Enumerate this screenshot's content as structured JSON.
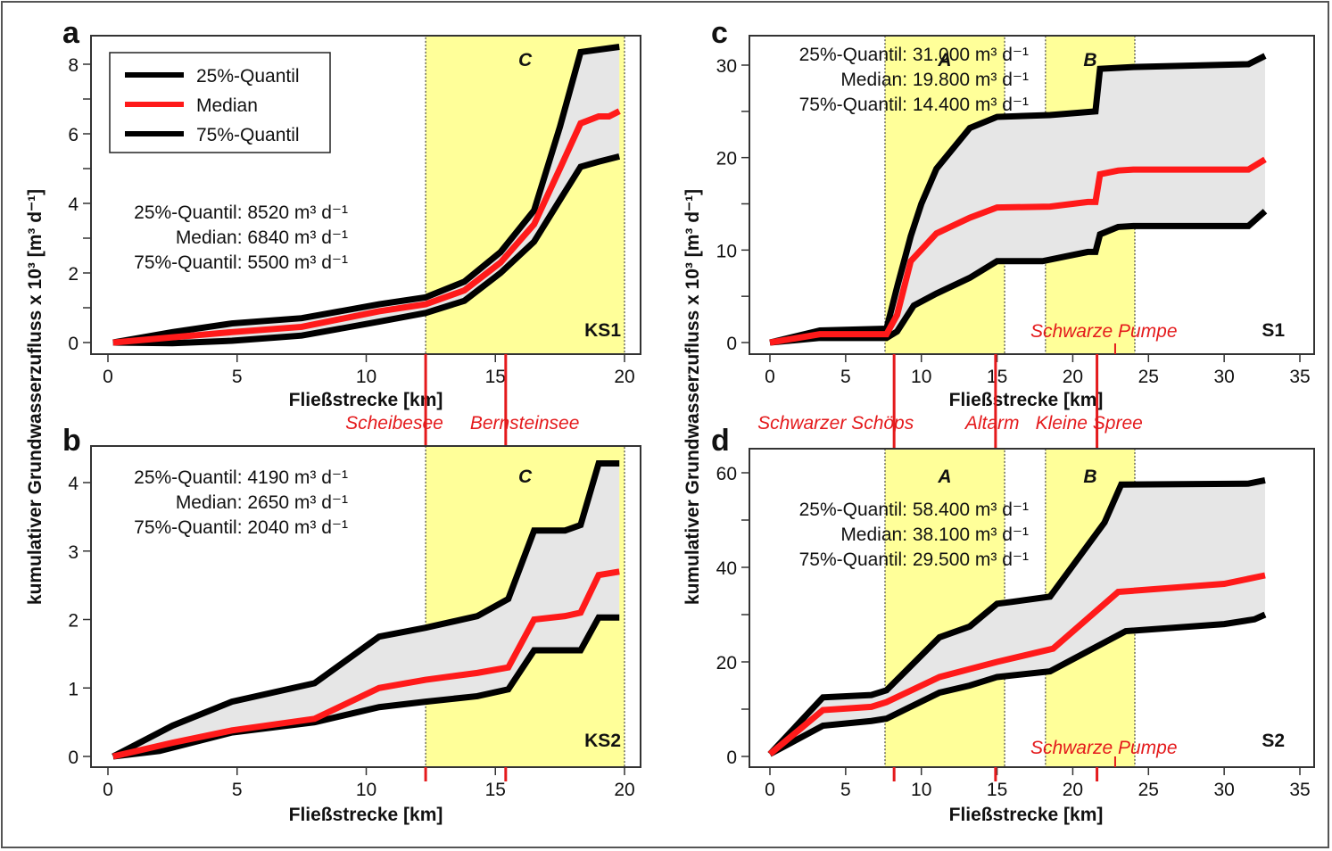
{
  "figure": {
    "y_axis_title": "kumulativer Grundwasserzufluss x 10³ [m³ d⁻¹]",
    "colors": {
      "quantile": "#000000",
      "median": "#ff1a1a",
      "band": "#e6e6e6",
      "zone": "#ffff99",
      "marker": "#e41a1c"
    }
  },
  "legend": {
    "items": [
      {
        "label": "25%-Quantil",
        "color": "#000000"
      },
      {
        "label": "Median",
        "color": "#ff1a1a"
      },
      {
        "label": "75%-Quantil",
        "color": "#000000"
      }
    ]
  },
  "chart_data": [
    {
      "id": "a",
      "panel_letter": "a",
      "type": "line",
      "station": "KS1",
      "xlabel": "Fließstrecke [km]",
      "ylabel": "kumulativer Grundwasserzufluss x 10³ [m³ d⁻¹]",
      "xlim": [
        0,
        20
      ],
      "ylim": [
        0,
        8
      ],
      "xticks": [
        0,
        5,
        10,
        15,
        20
      ],
      "yticks": [
        0,
        2,
        4,
        6,
        8
      ],
      "legend_position": "top-left",
      "stats": [
        "25%-Quantil: 8520 m³ d⁻¹",
        "Median: 6840 m³ d⁻¹",
        "75%-Quantil: 5500 m³ d⁻¹"
      ],
      "zones": [
        {
          "label": "C",
          "from": 12.3,
          "to": 20.0
        }
      ],
      "markers": [
        {
          "label": "Scheibesee",
          "x": 12.3
        },
        {
          "label": "Bernsteinsee",
          "x": 15.4
        }
      ],
      "series": [
        {
          "name": "25%-Quantil",
          "x": [
            0.2,
            2.5,
            4.8,
            7.5,
            10.5,
            12.3,
            13.8,
            15.2,
            16.5,
            17.5,
            18.3,
            19.8
          ],
          "y": [
            0.0,
            0.3,
            0.55,
            0.7,
            1.1,
            1.3,
            1.75,
            2.6,
            3.8,
            6.2,
            8.35,
            8.5
          ]
        },
        {
          "name": "Median",
          "x": [
            0.2,
            2.5,
            4.8,
            7.5,
            10.5,
            12.3,
            13.8,
            15.2,
            16.5,
            17.5,
            18.3,
            19.0,
            19.4,
            19.8
          ],
          "y": [
            0.0,
            0.15,
            0.3,
            0.45,
            0.9,
            1.1,
            1.5,
            2.3,
            3.4,
            5.0,
            6.3,
            6.5,
            6.5,
            6.65
          ]
        },
        {
          "name": "75%-Quantil",
          "x": [
            0.2,
            2.5,
            4.8,
            7.5,
            10.5,
            12.3,
            13.8,
            15.2,
            16.5,
            17.5,
            18.3,
            19.0,
            19.8
          ],
          "y": [
            0.0,
            -0.02,
            0.05,
            0.2,
            0.6,
            0.85,
            1.2,
            2.0,
            2.9,
            4.1,
            5.05,
            5.2,
            5.35
          ]
        }
      ]
    },
    {
      "id": "b",
      "panel_letter": "b",
      "type": "line",
      "station": "KS2",
      "xlabel": "Fließstrecke [km]",
      "ylabel": "kumulativer Grundwasserzufluss x 10³ [m³ d⁻¹]",
      "xlim": [
        0,
        20
      ],
      "ylim": [
        0,
        4
      ],
      "xticks": [
        0,
        5,
        10,
        15,
        20
      ],
      "yticks": [
        0,
        1,
        2,
        3,
        4
      ],
      "stats": [
        "25%-Quantil: 4190 m³ d⁻¹",
        "Median: 2650 m³ d⁻¹",
        "75%-Quantil: 2040 m³ d⁻¹"
      ],
      "zones": [
        {
          "label": "C",
          "from": 12.3,
          "to": 20.0
        }
      ],
      "markers": [
        {
          "label": "Scheibesee",
          "x": 12.3
        },
        {
          "label": "Bernsteinsee",
          "x": 15.4
        }
      ],
      "series": [
        {
          "name": "25%-Quantil",
          "x": [
            0.2,
            2.5,
            4.8,
            8.0,
            10.5,
            12.3,
            14.3,
            15.5,
            16.5,
            17.7,
            18.3,
            19.0,
            19.8
          ],
          "y": [
            0.0,
            0.45,
            0.8,
            1.07,
            1.75,
            1.88,
            2.05,
            2.3,
            3.3,
            3.3,
            3.38,
            4.28,
            4.28
          ]
        },
        {
          "name": "Median",
          "x": [
            0.2,
            2.5,
            4.8,
            8.0,
            10.5,
            12.3,
            14.3,
            15.5,
            16.5,
            17.7,
            18.3,
            19.0,
            19.8
          ],
          "y": [
            0.0,
            0.2,
            0.38,
            0.55,
            1.0,
            1.12,
            1.22,
            1.3,
            2.0,
            2.05,
            2.1,
            2.65,
            2.7
          ]
        },
        {
          "name": "75%-Quantil",
          "x": [
            0.2,
            2.0,
            4.8,
            8.0,
            10.5,
            12.3,
            14.3,
            15.5,
            16.5,
            17.7,
            18.3,
            19.0,
            19.8
          ],
          "y": [
            0.0,
            0.08,
            0.35,
            0.5,
            0.72,
            0.8,
            0.88,
            0.98,
            1.55,
            1.55,
            1.55,
            2.03,
            2.03
          ]
        }
      ]
    },
    {
      "id": "c",
      "panel_letter": "c",
      "type": "line",
      "station": "S1",
      "xlabel": "Fließstrecke [km]",
      "ylabel": "kumulativer Grundwasserzufluss x 10³ [m³ d⁻¹]",
      "xlim": [
        -1.3,
        35.5
      ],
      "ylim": [
        -1.3,
        33
      ],
      "xticks": [
        0,
        5,
        10,
        15,
        20,
        25,
        30,
        35
      ],
      "yticks": [
        0,
        10,
        20,
        30
      ],
      "stats": [
        "25%-Quantil: 31.000 m³ d⁻¹",
        "Median: 19.800 m³ d⁻¹",
        "75%-Quantil: 14.400 m³ d⁻¹"
      ],
      "zones": [
        {
          "label": "A",
          "from": 7.6,
          "to": 15.5
        },
        {
          "label": "B",
          "from": 18.2,
          "to": 24.1
        }
      ],
      "markers": [
        {
          "label": "Schwarzer Schöps",
          "x": 8.2,
          "side": "below"
        },
        {
          "label": "Altarm",
          "x": 14.9,
          "side": "below"
        },
        {
          "label": "Kleine Spree",
          "x": 21.6,
          "side": "below"
        },
        {
          "label": "Schwarze Pumpe",
          "x": 22.8,
          "side": "inside"
        }
      ],
      "series": [
        {
          "name": "25%-Quantil",
          "x": [
            0,
            3.3,
            7.7,
            8.4,
            9.3,
            10.0,
            11.0,
            13.2,
            15.0,
            18.5,
            21.5,
            21.8,
            24.0,
            31.6,
            32.7
          ],
          "y": [
            0,
            1.3,
            1.5,
            6.0,
            11.5,
            15.0,
            18.8,
            23.2,
            24.4,
            24.6,
            25.0,
            29.6,
            29.8,
            30.1,
            31.0
          ]
        },
        {
          "name": "Median",
          "x": [
            0,
            3.3,
            7.7,
            8.4,
            9.3,
            11.0,
            13.2,
            15.0,
            18.5,
            21.0,
            21.5,
            21.8,
            23.0,
            24.0,
            31.6,
            32.7
          ],
          "y": [
            0,
            0.9,
            0.9,
            3.0,
            8.8,
            11.8,
            13.5,
            14.6,
            14.7,
            15.2,
            15.2,
            18.2,
            18.6,
            18.7,
            18.7,
            19.8
          ]
        },
        {
          "name": "75%-Quantil",
          "x": [
            0,
            3.3,
            7.7,
            8.4,
            9.5,
            11.0,
            13.2,
            15.0,
            18.0,
            19.5,
            21.0,
            21.5,
            21.8,
            23.0,
            24.0,
            31.6,
            32.7
          ],
          "y": [
            0,
            0.5,
            0.5,
            1.2,
            4.0,
            5.3,
            7.0,
            8.8,
            8.8,
            9.3,
            9.8,
            9.8,
            11.7,
            12.5,
            12.6,
            12.6,
            14.2
          ]
        }
      ]
    },
    {
      "id": "d",
      "panel_letter": "d",
      "type": "line",
      "station": "S2",
      "xlabel": "Fließstrecke [km]",
      "ylabel": "kumulativer Grundwasserzufluss x 10³ [m³ d⁻¹]",
      "xlim": [
        -1.3,
        35.5
      ],
      "ylim": [
        -2.3,
        65
      ],
      "xticks": [
        0,
        5,
        10,
        15,
        20,
        25,
        30,
        35
      ],
      "yticks": [
        0,
        20,
        40,
        60
      ],
      "stats": [
        "25%-Quantil: 58.400 m³ d⁻¹",
        "Median: 38.100 m³ d⁻¹",
        "75%-Quantil: 29.500 m³ d⁻¹"
      ],
      "zones": [
        {
          "label": "A",
          "from": 7.6,
          "to": 15.5
        },
        {
          "label": "B",
          "from": 18.2,
          "to": 24.1
        }
      ],
      "markers": [
        {
          "label": "Schwarzer Schöps",
          "x": 8.2,
          "side": "top"
        },
        {
          "label": "Altarm",
          "x": 14.9,
          "side": "top"
        },
        {
          "label": "Kleine Spree",
          "x": 21.6,
          "side": "top"
        },
        {
          "label": "Schwarze Pumpe",
          "x": 22.8,
          "side": "inside"
        }
      ],
      "series": [
        {
          "name": "25%-Quantil",
          "x": [
            0,
            3.5,
            6.7,
            7.7,
            11.2,
            13.2,
            15.0,
            16.0,
            18.5,
            22.1,
            23.2,
            31.6,
            32.7
          ],
          "y": [
            0.5,
            12.5,
            13.0,
            14.0,
            25.2,
            27.5,
            32.3,
            32.7,
            33.8,
            49.5,
            57.5,
            57.7,
            58.4
          ]
        },
        {
          "name": "Median",
          "x": [
            0,
            3.5,
            6.7,
            7.7,
            11.2,
            13.2,
            15.0,
            18.7,
            23.0,
            30.0,
            32.7
          ],
          "y": [
            0.5,
            9.8,
            10.5,
            11.5,
            16.8,
            18.5,
            20.0,
            22.8,
            34.8,
            36.5,
            38.3
          ]
        },
        {
          "name": "75%-Quantil",
          "x": [
            0,
            3.5,
            6.7,
            7.7,
            11.2,
            13.2,
            15.0,
            18.5,
            23.5,
            30.0,
            32.0,
            32.7
          ],
          "y": [
            0.5,
            6.5,
            7.5,
            8.0,
            13.5,
            15.0,
            16.8,
            18.0,
            26.5,
            28.0,
            29.0,
            30.0
          ]
        }
      ]
    }
  ]
}
